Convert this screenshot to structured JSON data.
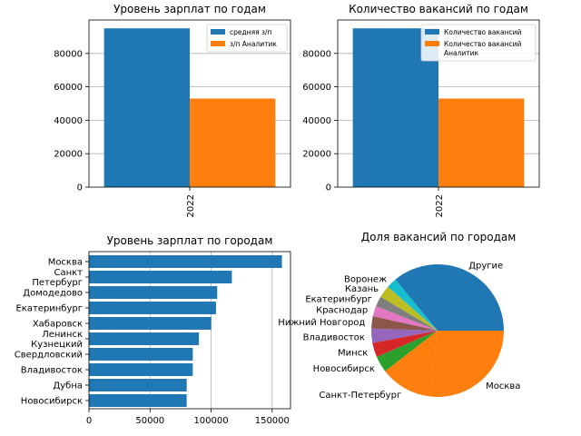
{
  "chart_data": [
    {
      "type": "bar",
      "title": "Уровень зарплат по годам",
      "categories": [
        "2022"
      ],
      "series": [
        {
          "name": "средняя з/п",
          "values": [
            95000
          ],
          "color": "#1f77b4"
        },
        {
          "name": "з/п Аналитик",
          "values": [
            53000
          ],
          "color": "#ff7f0e"
        }
      ],
      "ylim": [
        0,
        100000
      ],
      "yticks": [
        0,
        20000,
        40000,
        60000,
        80000
      ],
      "grid": "y",
      "legend": "top-right"
    },
    {
      "type": "bar",
      "title": "Количество вакансий по годам",
      "categories": [
        "2022"
      ],
      "series": [
        {
          "name": "Количество вакансий",
          "values": [
            95000
          ],
          "color": "#1f77b4"
        },
        {
          "name": "Количество вакансий Аналитик",
          "values": [
            53000
          ],
          "color": "#ff7f0e"
        }
      ],
      "ylim": [
        0,
        100000
      ],
      "yticks": [
        0,
        20000,
        40000,
        60000,
        80000
      ],
      "grid": "y",
      "legend": "top-right"
    },
    {
      "type": "bar",
      "orientation": "horizontal",
      "title": "Уровень зарплат по городам",
      "categories": [
        "Москва",
        "Санкт Петербург",
        "Домодедово",
        "Екатеринбург",
        "Хабаровск",
        "Ленинск Кузнецкий",
        "Свердловский",
        "Владивосток",
        "Дубна",
        "Новосибирск"
      ],
      "values": [
        158000,
        117000,
        105000,
        104000,
        100000,
        90000,
        85000,
        85000,
        80000,
        80000
      ],
      "xlim": [
        0,
        165000
      ],
      "xticks": [
        0,
        50000,
        100000,
        150000
      ],
      "grid": "x",
      "color": "#1f77b4"
    },
    {
      "type": "pie",
      "title": "Доля вакансий по городам",
      "labels": [
        "Другие",
        "Воронеж",
        "Казань",
        "Екатеринбург",
        "Краснодар",
        "Нижний Новгород",
        "Владивосток",
        "Минск",
        "Новосибирск",
        "Санкт-Петербург",
        "Москва"
      ],
      "values": [
        36.0,
        2.5,
        3.0,
        2.5,
        2.5,
        3.0,
        3.5,
        3.5,
        4.0,
        12.5,
        27.0
      ],
      "colors": [
        "#1f77b4",
        "#17becf",
        "#bcbd22",
        "#7f7f7f",
        "#e377c2",
        "#8c564b",
        "#9467bd",
        "#d62728",
        "#2ca02c",
        "#ff7f0e",
        "#ff7f0e"
      ]
    }
  ]
}
